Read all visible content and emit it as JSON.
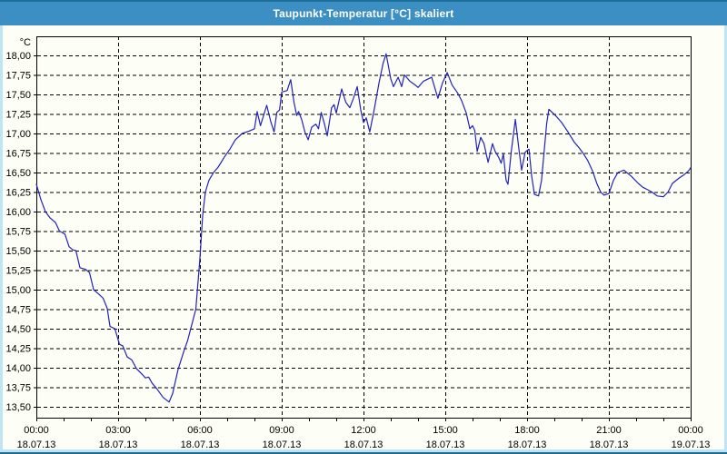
{
  "window": {
    "title_bar": {
      "title": "Taupunkt-Temperatur [°C] skaliert"
    }
  },
  "colors": {
    "title_bar_bg": "#3b8fc3",
    "border_dark": "#1d6f9a",
    "border_light": "#bfe4f5",
    "content_bg": "#fdfef6",
    "line": "#2222bb",
    "grid": "#000000",
    "text": "#000000"
  },
  "chart_data": {
    "type": "line",
    "title": "Taupunkt-Temperatur [°C] skaliert",
    "y_unit": "°C",
    "ylim": [
      13.5,
      18.0
    ],
    "y_tick_step": 0.25,
    "x_range_hours": [
      0,
      24
    ],
    "grid": "dashed-black-horizontal-and-vertical",
    "legend": "none",
    "y_ticks": [
      {
        "value": 18.0,
        "label": "18,00"
      },
      {
        "value": 17.75,
        "label": "17,75"
      },
      {
        "value": 17.5,
        "label": "17,50"
      },
      {
        "value": 17.25,
        "label": "17,25"
      },
      {
        "value": 17.0,
        "label": "17,00"
      },
      {
        "value": 16.75,
        "label": "16,75"
      },
      {
        "value": 16.5,
        "label": "16,50"
      },
      {
        "value": 16.25,
        "label": "16,25"
      },
      {
        "value": 16.0,
        "label": "16,00"
      },
      {
        "value": 15.75,
        "label": "15,75"
      },
      {
        "value": 15.5,
        "label": "15,50"
      },
      {
        "value": 15.25,
        "label": "15,25"
      },
      {
        "value": 15.0,
        "label": "15,00"
      },
      {
        "value": 14.75,
        "label": "14,75"
      },
      {
        "value": 14.5,
        "label": "14,50"
      },
      {
        "value": 14.25,
        "label": "14,25"
      },
      {
        "value": 14.0,
        "label": "14,00"
      },
      {
        "value": 13.75,
        "label": "13,75"
      },
      {
        "value": 13.5,
        "label": "13,50"
      }
    ],
    "x_ticks": [
      {
        "hour": 0,
        "time": "00:00",
        "date": "18.07.13"
      },
      {
        "hour": 3,
        "time": "03:00",
        "date": "18.07.13"
      },
      {
        "hour": 6,
        "time": "06:00",
        "date": "18.07.13"
      },
      {
        "hour": 9,
        "time": "09:00",
        "date": "18.07.13"
      },
      {
        "hour": 12,
        "time": "12:00",
        "date": "18.07.13"
      },
      {
        "hour": 15,
        "time": "15:00",
        "date": "18.07.13"
      },
      {
        "hour": 18,
        "time": "18:00",
        "date": "18.07.13"
      },
      {
        "hour": 21,
        "time": "21:00",
        "date": "18.07.13"
      },
      {
        "hour": 24,
        "time": "00:00",
        "date": "19.07.13"
      }
    ],
    "series": [
      {
        "name": "Taupunkt-Temperatur [°C] skaliert",
        "color": "#2222bb",
        "points": [
          [
            0.0,
            16.35
          ],
          [
            0.17,
            16.15
          ],
          [
            0.33,
            16.0
          ],
          [
            0.5,
            15.92
          ],
          [
            0.7,
            15.86
          ],
          [
            0.85,
            15.75
          ],
          [
            1.05,
            15.71
          ],
          [
            1.2,
            15.55
          ],
          [
            1.33,
            15.51
          ],
          [
            1.45,
            15.5
          ],
          [
            1.6,
            15.28
          ],
          [
            1.8,
            15.26
          ],
          [
            1.95,
            15.22
          ],
          [
            2.1,
            15.0
          ],
          [
            2.3,
            14.94
          ],
          [
            2.45,
            14.89
          ],
          [
            2.6,
            14.76
          ],
          [
            2.7,
            14.53
          ],
          [
            2.88,
            14.5
          ],
          [
            3.05,
            14.3
          ],
          [
            3.17,
            14.28
          ],
          [
            3.33,
            14.14
          ],
          [
            3.5,
            14.1
          ],
          [
            3.67,
            13.99
          ],
          [
            3.87,
            13.92
          ],
          [
            4.0,
            13.87
          ],
          [
            4.12,
            13.88
          ],
          [
            4.25,
            13.8
          ],
          [
            4.42,
            13.73
          ],
          [
            4.65,
            13.62
          ],
          [
            4.87,
            13.56
          ],
          [
            5.0,
            13.67
          ],
          [
            5.2,
            13.98
          ],
          [
            5.4,
            14.2
          ],
          [
            5.55,
            14.35
          ],
          [
            5.7,
            14.55
          ],
          [
            5.85,
            14.75
          ],
          [
            6.0,
            15.4
          ],
          [
            6.1,
            15.95
          ],
          [
            6.2,
            16.25
          ],
          [
            6.33,
            16.4
          ],
          [
            6.5,
            16.5
          ],
          [
            6.67,
            16.57
          ],
          [
            6.9,
            16.7
          ],
          [
            7.1,
            16.8
          ],
          [
            7.3,
            16.92
          ],
          [
            7.55,
            17.0
          ],
          [
            7.8,
            17.03
          ],
          [
            8.0,
            17.06
          ],
          [
            8.1,
            17.28
          ],
          [
            8.22,
            17.1
          ],
          [
            8.45,
            17.36
          ],
          [
            8.6,
            17.15
          ],
          [
            8.72,
            17.02
          ],
          [
            8.82,
            17.27
          ],
          [
            8.92,
            17.3
          ],
          [
            9.0,
            17.53
          ],
          [
            9.2,
            17.55
          ],
          [
            9.33,
            17.69
          ],
          [
            9.45,
            17.4
          ],
          [
            9.55,
            17.23
          ],
          [
            9.62,
            17.28
          ],
          [
            9.73,
            17.18
          ],
          [
            9.85,
            17.02
          ],
          [
            9.97,
            16.92
          ],
          [
            10.1,
            17.08
          ],
          [
            10.25,
            17.12
          ],
          [
            10.35,
            17.06
          ],
          [
            10.45,
            17.27
          ],
          [
            10.57,
            17.12
          ],
          [
            10.67,
            16.97
          ],
          [
            10.83,
            17.33
          ],
          [
            10.92,
            17.37
          ],
          [
            11.0,
            17.26
          ],
          [
            11.2,
            17.57
          ],
          [
            11.35,
            17.4
          ],
          [
            11.5,
            17.33
          ],
          [
            11.63,
            17.45
          ],
          [
            11.77,
            17.6
          ],
          [
            11.9,
            17.3
          ],
          [
            12.0,
            17.14
          ],
          [
            12.1,
            17.2
          ],
          [
            12.23,
            17.02
          ],
          [
            12.4,
            17.32
          ],
          [
            12.57,
            17.65
          ],
          [
            12.72,
            17.9
          ],
          [
            12.83,
            18.02
          ],
          [
            13.0,
            17.7
          ],
          [
            13.1,
            17.6
          ],
          [
            13.27,
            17.72
          ],
          [
            13.4,
            17.6
          ],
          [
            13.5,
            17.75
          ],
          [
            13.7,
            17.67
          ],
          [
            13.9,
            17.62
          ],
          [
            14.0,
            17.59
          ],
          [
            14.2,
            17.67
          ],
          [
            14.5,
            17.72
          ],
          [
            14.73,
            17.45
          ],
          [
            14.9,
            17.65
          ],
          [
            15.07,
            17.78
          ],
          [
            15.25,
            17.62
          ],
          [
            15.45,
            17.52
          ],
          [
            15.6,
            17.42
          ],
          [
            15.77,
            17.26
          ],
          [
            15.9,
            17.06
          ],
          [
            16.0,
            17.1
          ],
          [
            16.08,
            17.04
          ],
          [
            16.17,
            16.77
          ],
          [
            16.3,
            16.95
          ],
          [
            16.42,
            16.87
          ],
          [
            16.57,
            16.63
          ],
          [
            16.73,
            16.87
          ],
          [
            16.83,
            16.77
          ],
          [
            16.95,
            16.7
          ],
          [
            17.05,
            16.62
          ],
          [
            17.13,
            16.74
          ],
          [
            17.23,
            16.4
          ],
          [
            17.3,
            16.35
          ],
          [
            17.42,
            16.77
          ],
          [
            17.57,
            17.18
          ],
          [
            17.7,
            16.8
          ],
          [
            17.8,
            16.53
          ],
          [
            17.93,
            16.76
          ],
          [
            18.0,
            16.78
          ],
          [
            18.07,
            16.8
          ],
          [
            18.17,
            16.45
          ],
          [
            18.27,
            16.22
          ],
          [
            18.42,
            16.2
          ],
          [
            18.53,
            16.4
          ],
          [
            18.65,
            16.86
          ],
          [
            18.72,
            17.13
          ],
          [
            18.8,
            17.31
          ],
          [
            19.07,
            17.22
          ],
          [
            19.27,
            17.14
          ],
          [
            19.5,
            17.02
          ],
          [
            19.73,
            16.89
          ],
          [
            19.9,
            16.82
          ],
          [
            20.07,
            16.74
          ],
          [
            20.23,
            16.65
          ],
          [
            20.4,
            16.52
          ],
          [
            20.57,
            16.35
          ],
          [
            20.7,
            16.25
          ],
          [
            20.82,
            16.21
          ],
          [
            21.0,
            16.23
          ],
          [
            21.17,
            16.4
          ],
          [
            21.33,
            16.5
          ],
          [
            21.55,
            16.53
          ],
          [
            21.83,
            16.45
          ],
          [
            22.08,
            16.36
          ],
          [
            22.25,
            16.31
          ],
          [
            22.42,
            16.28
          ],
          [
            22.58,
            16.25
          ],
          [
            22.77,
            16.2
          ],
          [
            23.0,
            16.19
          ],
          [
            23.17,
            16.25
          ],
          [
            23.33,
            16.36
          ],
          [
            23.58,
            16.43
          ],
          [
            23.75,
            16.47
          ],
          [
            23.92,
            16.52
          ],
          [
            24.0,
            16.56
          ]
        ]
      }
    ]
  }
}
